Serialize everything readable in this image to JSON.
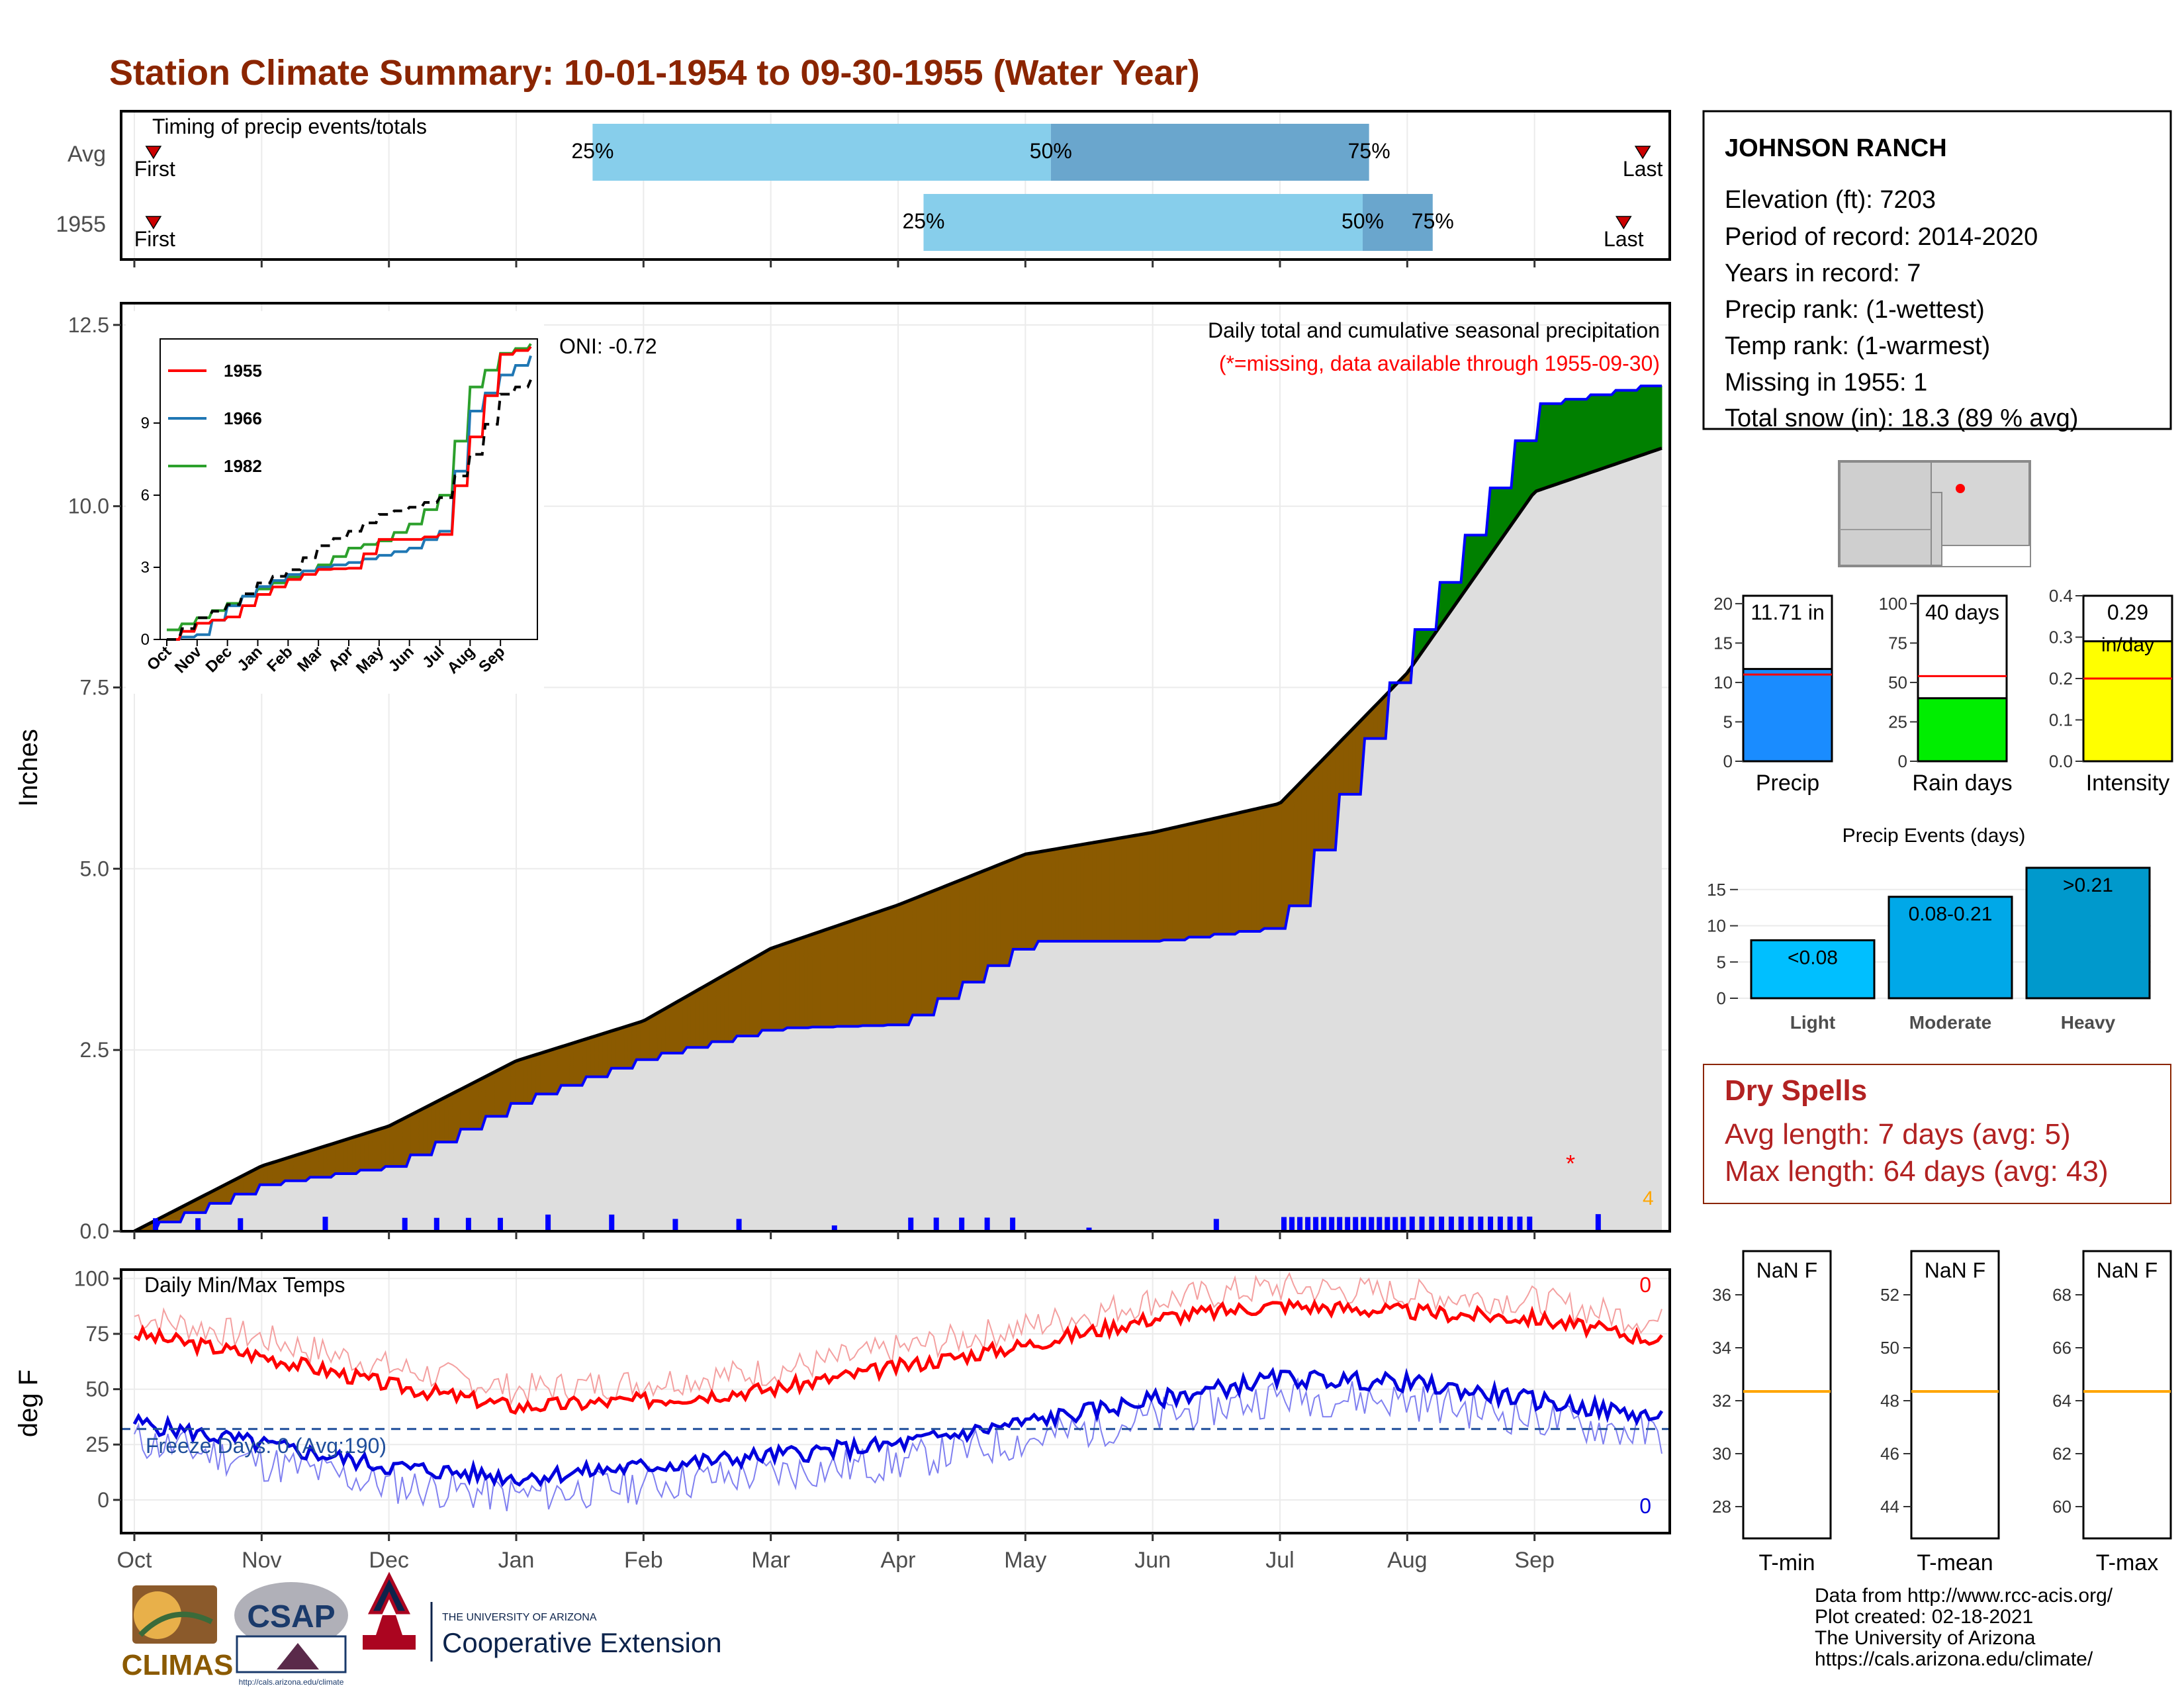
{
  "title": "Station Climate Summary: 10-01-1954 to 09-30-1955 (Water Year)",
  "colors": {
    "title": "#8b2500",
    "precip_fill": "#1a8cff",
    "rain_fill": "#00ee00",
    "intensity_fill": "#ffff00",
    "above": "#008000",
    "below": "#8b5a00",
    "cumulative_line": "#0000ff",
    "avg_line": "#ff0000",
    "dry_text": "#b22222",
    "max_temp": "#ff0000",
    "min_temp": "#0000dd",
    "timing_light": "#87ceeb",
    "timing_dark": "#6aa6cd"
  },
  "timing": {
    "title": "Timing of precip events/totals",
    "rows": [
      {
        "label": "Avg",
        "first": "First",
        "last": "Last",
        "first_month": 0.15,
        "last_month": 11.85,
        "p25": 3.6,
        "p50": 7.2,
        "p75": 9.7,
        "p25_label": "25%",
        "p50_label": "50%",
        "p75_label": "75%"
      },
      {
        "label": "1955",
        "first": "First",
        "last": "Last",
        "first_month": 0.15,
        "last_month": 11.7,
        "p25": 6.2,
        "p50": 9.65,
        "p75": 10.2,
        "p25_label": "25%",
        "p50_label": "50%",
        "p75_label": "75%"
      }
    ]
  },
  "main_chart": {
    "ylabel": "Inches",
    "yticks": [
      "0.0",
      "2.5",
      "5.0",
      "7.5",
      "10.0",
      "12.5"
    ],
    "ytick_values": [
      0,
      2.5,
      5,
      7.5,
      10,
      12.5
    ],
    "ylim": [
      0,
      12.8
    ],
    "months": [
      "Oct",
      "Nov",
      "Dec",
      "Jan",
      "Feb",
      "Mar",
      "Apr",
      "May",
      "Jun",
      "Jul",
      "Aug",
      "Sep"
    ],
    "oni": "ONI: -0.72",
    "subtitle": "Daily total and cumulative seasonal precipitation",
    "missing_note": "(*=missing, data available through 1955-09-30)",
    "count_label": "4"
  },
  "inset": {
    "yticks": [
      "0",
      "3",
      "6",
      "9"
    ],
    "months": [
      "Oct",
      "Nov",
      "Dec",
      "Jan",
      "Feb",
      "Mar",
      "Apr",
      "May",
      "Jun",
      "Jul",
      "Aug",
      "Sep"
    ],
    "legend": [
      {
        "name": "1955",
        "color": "#ff0000"
      },
      {
        "name": "1966",
        "color": "#1f77b4"
      },
      {
        "name": "1982",
        "color": "#2ca02c"
      }
    ]
  },
  "chart_data": [
    {
      "type": "area",
      "title": "Daily total and cumulative seasonal precipitation",
      "ylabel": "Inches",
      "ylim": [
        0,
        12.8
      ],
      "x": [
        "Oct",
        "Nov",
        "Dec",
        "Jan",
        "Feb",
        "Mar",
        "Apr",
        "May",
        "Jun",
        "Jul",
        "Aug",
        "Sep",
        "Sep 30"
      ],
      "series": [
        {
          "name": "1955",
          "values": [
            0,
            0.65,
            0.9,
            1.8,
            2.4,
            2.8,
            2.85,
            4.0,
            4.0,
            4.2,
            8.1,
            11.4,
            11.71
          ]
        },
        {
          "name": "Avg",
          "values": [
            0,
            0.9,
            1.45,
            2.35,
            2.9,
            3.9,
            4.5,
            5.2,
            5.5,
            5.9,
            7.7,
            10.2,
            10.8
          ]
        }
      ]
    },
    {
      "type": "line",
      "title": "Daily Min/Max Temps",
      "ylabel": "deg F",
      "ylim": [
        -15,
        100
      ],
      "x": [
        "Oct",
        "Nov",
        "Dec",
        "Jan",
        "Feb",
        "Mar",
        "Apr",
        "May",
        "Jun",
        "Jul",
        "Aug",
        "Sep",
        "Sep 30"
      ],
      "series": [
        {
          "name": "Max",
          "values": [
            75,
            65,
            52,
            42,
            45,
            50,
            60,
            70,
            82,
            88,
            85,
            82,
            72
          ]
        },
        {
          "name": "Min",
          "values": [
            35,
            25,
            15,
            10,
            15,
            20,
            25,
            35,
            45,
            55,
            53,
            45,
            37
          ]
        }
      ]
    },
    {
      "type": "bar",
      "categories": [
        "Precip",
        "Rain days",
        "Intensity"
      ],
      "values": [
        11.71,
        40,
        0.29
      ],
      "averages": [
        11.0,
        54,
        0.2
      ],
      "ylims": [
        [
          0,
          21
        ],
        [
          0,
          105
        ],
        [
          0,
          0.4
        ]
      ]
    },
    {
      "type": "bar",
      "title": "Precip Events (days)",
      "categories": [
        "Light",
        "Moderate",
        "Heavy"
      ],
      "values": [
        8,
        14,
        18
      ],
      "ylim": [
        0,
        19
      ]
    }
  ],
  "temp_chart": {
    "title": "Daily Min/Max Temps",
    "ylabel": "deg F",
    "yticks": [
      "0",
      "25",
      "50",
      "75",
      "100"
    ],
    "ytick_values": [
      0,
      25,
      50,
      75,
      100
    ],
    "freeze_label": "Freeze Days: 0 (Avg:190)",
    "max_count": "0",
    "min_count": "0",
    "months": [
      "Oct",
      "Nov",
      "Dec",
      "Jan",
      "Feb",
      "Mar",
      "Apr",
      "May",
      "Jun",
      "Jul",
      "Aug",
      "Sep"
    ]
  },
  "station": {
    "name": "JOHNSON RANCH",
    "lines": [
      "Elevation (ft): 7203",
      "Period of record: 2014-2020",
      "Years in record: 7",
      "Precip rank:  (1-wettest)",
      "Temp rank:  (1-warmest)",
      "Missing in 1955: 1",
      "Total snow (in): 18.3 (89 % avg)"
    ]
  },
  "summary_bars": [
    {
      "label": "Precip",
      "value_label": "11.71 in",
      "yticks": [
        "0",
        "5",
        "10",
        "15",
        "20"
      ]
    },
    {
      "label": "Rain days",
      "value_label": "40 days",
      "yticks": [
        "0",
        "25",
        "50",
        "75",
        "100"
      ]
    },
    {
      "label": "Intensity",
      "value_label": "0.29",
      "unit_label": "in/day",
      "yticks": [
        "0.0",
        "0.1",
        "0.2",
        "0.3",
        "0.4"
      ]
    }
  ],
  "events": {
    "title": "Precip Events (days)",
    "yticks": [
      "0",
      "5",
      "10",
      "15"
    ],
    "bars": [
      {
        "label": "Light",
        "range": "<0.08"
      },
      {
        "label": "Moderate",
        "range": "0.08-0.21"
      },
      {
        "label": "Heavy",
        "range": ">0.21"
      }
    ]
  },
  "dry_spells": {
    "title": "Dry Spells",
    "avg": "Avg length: 7 days (avg: 5)",
    "max": "Max length: 64 days (avg: 43)"
  },
  "temp_panels": [
    {
      "label": "T-min",
      "value": "NaN F",
      "yticks": [
        "28",
        "30",
        "32",
        "34",
        "36"
      ]
    },
    {
      "label": "T-mean",
      "value": "NaN F",
      "yticks": [
        "44",
        "46",
        "48",
        "50",
        "52"
      ]
    },
    {
      "label": "T-max",
      "value": "NaN F",
      "yticks": [
        "60",
        "62",
        "64",
        "66",
        "68"
      ]
    }
  ],
  "footer": {
    "lines": [
      "Data from http://www.rcc-acis.org/",
      "Plot created: 02-18-2021",
      "The University of Arizona",
      "https://cals.arizona.edu/climate/"
    ],
    "climas": "CLIMAS",
    "csap": "CSAP",
    "csap_url": "http://cals.arizona.edu/climate",
    "ua_small": "THE UNIVERSITY OF ARIZONA",
    "ua_big": "Cooperative Extension"
  }
}
